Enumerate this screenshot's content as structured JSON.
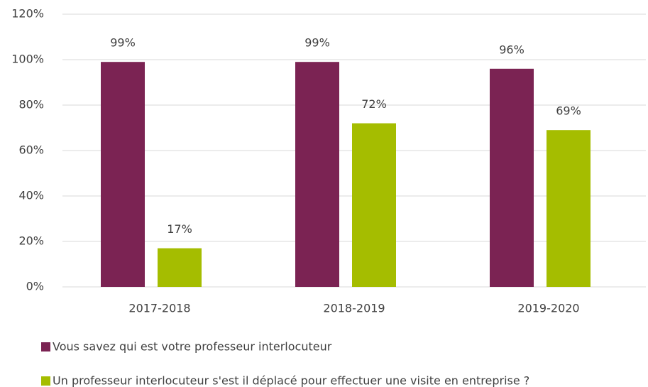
{
  "chart_data": {
    "type": "bar",
    "categories": [
      "2017-2018",
      "2018-2019",
      "2019-2020"
    ],
    "series": [
      {
        "name": "Vous savez qui est votre professeur interlocuteur",
        "color": "#7b2353",
        "values": [
          99,
          99,
          96
        ],
        "value_labels": [
          "99%",
          "99%",
          "96%"
        ]
      },
      {
        "name": "Un professeur interlocuteur s'est il déplacé pour effectuer une visite en entreprise ?",
        "color": "#a5bd00",
        "values": [
          17,
          72,
          69
        ],
        "value_labels": [
          "17%",
          "72%",
          "69%"
        ]
      }
    ],
    "ylim": [
      0,
      120
    ],
    "yticks": [
      {
        "value": 0,
        "label": "0%"
      },
      {
        "value": 20,
        "label": "20%"
      },
      {
        "value": 40,
        "label": "40%"
      },
      {
        "value": 60,
        "label": "60%"
      },
      {
        "value": 80,
        "label": "80%"
      },
      {
        "value": 100,
        "label": "100%"
      },
      {
        "value": 120,
        "label": "120%"
      }
    ],
    "grid": true,
    "legend": "bottom"
  }
}
